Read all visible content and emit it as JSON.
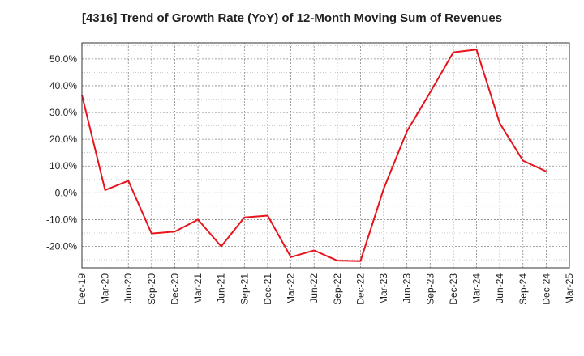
{
  "title": "[4316]  Trend of Growth Rate (YoY) of 12-Month Moving Sum of Revenues",
  "colors": {
    "line": "#e8141c",
    "grid": "#888888",
    "axis": "#333333",
    "text": "#222222"
  },
  "chart_data": {
    "type": "line",
    "title": "[4316]  Trend of Growth Rate (YoY) of 12-Month Moving Sum of Revenues",
    "xlabel": "",
    "ylabel": "",
    "ylim": [
      -28,
      56
    ],
    "yticks": [
      -20,
      -10,
      0,
      10,
      20,
      30,
      40,
      50
    ],
    "ytick_labels": [
      "-20.0%",
      "-10.0%",
      "0.0%",
      "10.0%",
      "20.0%",
      "30.0%",
      "40.0%",
      "50.0%"
    ],
    "xtick_labels": [
      "Dec-19",
      "Mar-20",
      "Jun-20",
      "Sep-20",
      "Dec-20",
      "Mar-21",
      "Jun-21",
      "Sep-21",
      "Dec-21",
      "Mar-22",
      "Jun-22",
      "Sep-22",
      "Dec-22",
      "Mar-23",
      "Jun-23",
      "Sep-23",
      "Dec-23",
      "Mar-24",
      "Jun-24",
      "Sep-24",
      "Dec-24",
      "Mar-25"
    ],
    "grid": true,
    "series": [
      {
        "x": [
          "Dec-19",
          "Mar-20",
          "Jun-20",
          "Sep-20",
          "Dec-20",
          "Mar-21",
          "Jun-21",
          "Sep-21",
          "Dec-21",
          "Mar-22",
          "Jun-22",
          "Sep-22",
          "Dec-22",
          "Mar-23",
          "Jun-23",
          "Sep-23",
          "Dec-23",
          "Mar-24",
          "Jun-24",
          "Sep-24",
          "Dec-24"
        ],
        "values": [
          36.5,
          1.0,
          4.5,
          -15.2,
          -14.5,
          -10.0,
          -20.0,
          -9.2,
          -8.5,
          -24.0,
          -21.5,
          -25.3,
          -25.5,
          1.5,
          23.0,
          37.5,
          52.5,
          53.5,
          26.0,
          12.0,
          8.0
        ],
        "color": "#e8141c"
      }
    ]
  }
}
